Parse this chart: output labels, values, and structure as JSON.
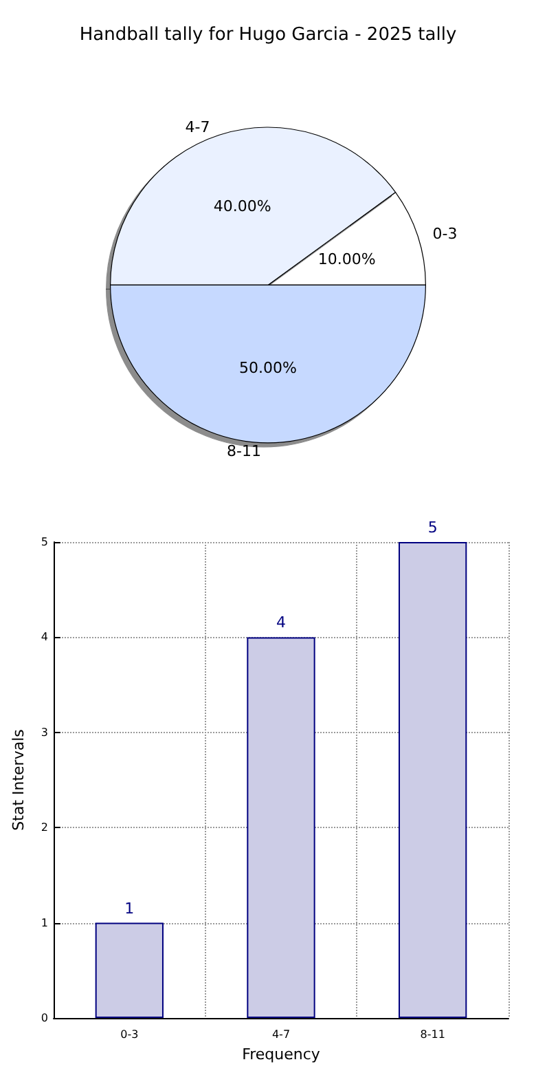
{
  "chart_data": [
    {
      "type": "pie",
      "title": "Handball tally for Hugo Garcia - 2025 tally",
      "categories": [
        "0-3",
        "4-7",
        "8-11"
      ],
      "values": [
        10,
        40,
        50
      ],
      "colors": [
        "#ffffff",
        "#eaf1ff",
        "#c6d9ff"
      ],
      "value_labels": [
        "10.00%",
        "40.00%",
        "50.00%"
      ],
      "legend": false
    },
    {
      "type": "bar",
      "xlabel": "Frequency",
      "ylabel": "Stat Intervals",
      "categories": [
        "0-3",
        "4-7",
        "8-11"
      ],
      "series": [
        {
          "color": "#ccccE6",
          "values": [
            1,
            4,
            5
          ]
        }
      ],
      "ylim": [
        0,
        5
      ],
      "yticks": [
        0,
        1,
        2,
        3,
        4,
        5
      ],
      "grid": true,
      "data_labels": true,
      "legend": false
    }
  ]
}
